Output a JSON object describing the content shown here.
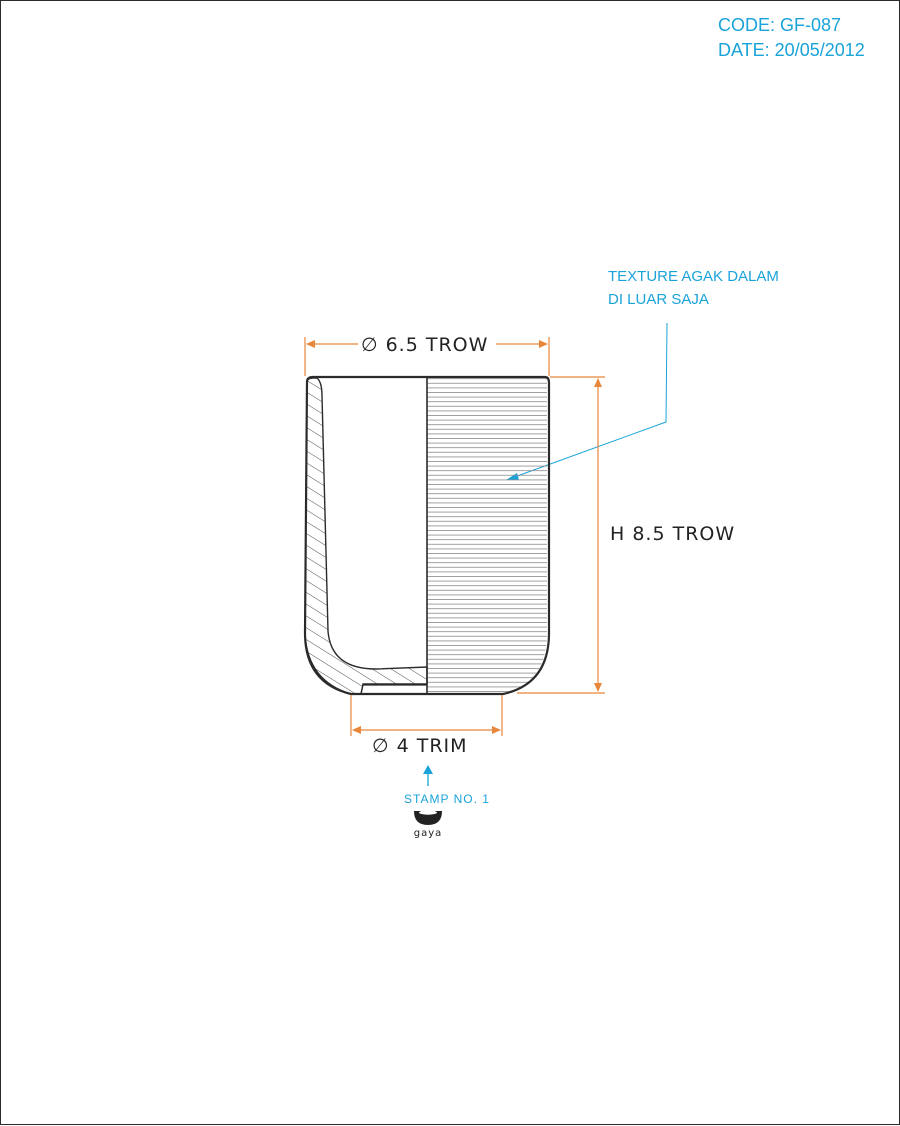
{
  "header": {
    "code": "CODE: GF-087",
    "date": "DATE: 20/05/2012"
  },
  "dimensions": {
    "top_diameter": "∅ 6.5 TROW",
    "height": "H 8.5 TROW",
    "bottom_diameter": "∅ 4 TRIM"
  },
  "notes": {
    "texture_line1": "TEXTURE AGAK DALAM",
    "texture_line2": "DI LUAR SAJA",
    "stamp": "STAMP NO. 1"
  },
  "logo": {
    "text": "gaya"
  },
  "colors": {
    "annotation": "#1aa3d9",
    "dimension": "#e8863a",
    "outline": "#2b2b2b"
  }
}
